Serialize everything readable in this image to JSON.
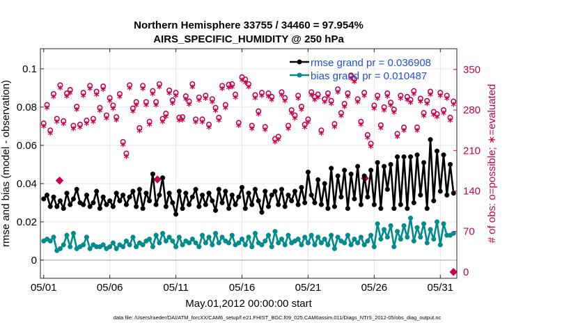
{
  "chart_data": {
    "type": "line",
    "title": "Northern Hemisphere 33755 / 34460 = 97.954%",
    "subtitle": "AIRS_SPECIFIC_HUMIDITY @ 250 hPa",
    "xlabel": "May.01,2012 00:00:00 start",
    "ylabel": "rmse and bias (model - observation)",
    "y2label": "# of obs: o=possible; ∗=evaluated",
    "footer": "data file: /Users/raeder/DAI/ATM_forcXX/CAM6_setup/f.e21.FHIST_BGC.f09_025.CAM6assim.011/Diags_NTrS_2012-05/obs_diag_output.nc",
    "x_tick_labels": [
      "05/01",
      "05/06",
      "05/11",
      "05/16",
      "05/21",
      "05/26",
      "05/31"
    ],
    "x_tick_values": [
      0,
      5,
      10,
      15,
      20,
      25,
      30
    ],
    "xlim": [
      -0.25,
      31.25
    ],
    "ylim": [
      -0.0095,
      0.1105
    ],
    "y_ticks": [
      0,
      0.02,
      0.04,
      0.06,
      0.08,
      0.1
    ],
    "y_tick_labels": [
      "0",
      "0.02",
      "0.04",
      "0.06",
      "0.08",
      "0.1"
    ],
    "y2lim": [
      -11,
      386
    ],
    "y2_ticks": [
      0,
      70,
      140,
      210,
      280,
      350
    ],
    "y2_tick_labels": [
      "0",
      "70",
      "140",
      "210",
      "280",
      "350"
    ],
    "x": [
      0.0,
      0.25,
      0.5,
      0.75,
      1.0,
      1.25,
      1.5,
      1.75,
      2.0,
      2.25,
      2.5,
      2.75,
      3.0,
      3.25,
      3.5,
      3.75,
      4.0,
      4.25,
      4.5,
      4.75,
      5.0,
      5.25,
      5.5,
      5.75,
      6.0,
      6.25,
      6.5,
      6.75,
      7.0,
      7.25,
      7.5,
      7.75,
      8.0,
      8.25,
      8.5,
      8.75,
      9.0,
      9.25,
      9.5,
      9.75,
      10.0,
      10.25,
      10.5,
      10.75,
      11.0,
      11.25,
      11.5,
      11.75,
      12.0,
      12.25,
      12.5,
      12.75,
      13.0,
      13.25,
      13.5,
      13.75,
      14.0,
      14.25,
      14.5,
      14.75,
      15.0,
      15.25,
      15.5,
      15.75,
      16.0,
      16.25,
      16.5,
      16.75,
      17.0,
      17.25,
      17.5,
      17.75,
      18.0,
      18.25,
      18.5,
      18.75,
      19.0,
      19.25,
      19.5,
      19.75,
      20.0,
      20.25,
      20.5,
      20.75,
      21.0,
      21.25,
      21.5,
      21.75,
      22.0,
      22.25,
      22.5,
      22.75,
      23.0,
      23.25,
      23.5,
      23.75,
      24.0,
      24.25,
      24.5,
      24.75,
      25.0,
      25.25,
      25.5,
      25.75,
      26.0,
      26.25,
      26.5,
      26.75,
      27.0,
      27.25,
      27.5,
      27.75,
      28.0,
      28.25,
      28.5,
      28.75,
      29.0,
      29.25,
      29.5,
      29.75,
      30.0,
      30.25,
      30.5,
      30.75,
      31.0
    ],
    "series": [
      {
        "name": "rmse grand pr = 0.036908",
        "axis": "left",
        "color": "#000000",
        "values": [
          0.032,
          0.034,
          0.028,
          0.033,
          0.028,
          0.031,
          0.027,
          0.035,
          0.029,
          0.032,
          0.037,
          0.03,
          0.029,
          0.034,
          0.028,
          0.03,
          0.036,
          0.027,
          0.033,
          0.029,
          0.031,
          0.028,
          0.035,
          0.031,
          0.034,
          0.029,
          0.033,
          0.036,
          0.028,
          0.037,
          0.027,
          0.035,
          0.031,
          0.045,
          0.029,
          0.034,
          0.043,
          0.028,
          0.035,
          0.03,
          0.024,
          0.036,
          0.027,
          0.035,
          0.029,
          0.033,
          0.037,
          0.028,
          0.034,
          0.029,
          0.035,
          0.031,
          0.026,
          0.037,
          0.03,
          0.036,
          0.027,
          0.034,
          0.029,
          0.033,
          0.038,
          0.027,
          0.035,
          0.029,
          0.037,
          0.031,
          0.025,
          0.036,
          0.028,
          0.034,
          0.036,
          0.029,
          0.037,
          0.028,
          0.034,
          0.031,
          0.036,
          0.029,
          0.038,
          0.03,
          0.046,
          0.034,
          0.03,
          0.042,
          0.029,
          0.04,
          0.027,
          0.048,
          0.028,
          0.044,
          0.033,
          0.047,
          0.027,
          0.045,
          0.032,
          0.049,
          0.029,
          0.044,
          0.033,
          0.047,
          0.029,
          0.051,
          0.027,
          0.049,
          0.037,
          0.05,
          0.027,
          0.054,
          0.029,
          0.054,
          0.027,
          0.054,
          0.03,
          0.055,
          0.034,
          0.051,
          0.027,
          0.063,
          0.031,
          0.057,
          0.036,
          0.055,
          0.034,
          0.05,
          0.035
        ]
      },
      {
        "name": "bias grand pr = 0.010487",
        "axis": "left",
        "color": "#008c8c",
        "values": [
          0.01,
          0.011,
          0.01,
          0.012,
          0.005,
          0.006,
          0.008,
          0.013,
          0.007,
          0.014,
          0.006,
          0.007,
          0.008,
          0.012,
          0.006,
          0.008,
          0.007,
          0.007,
          0.008,
          0.006,
          0.007,
          0.009,
          0.006,
          0.008,
          0.007,
          0.01,
          0.008,
          0.012,
          0.007,
          0.009,
          0.008,
          0.01,
          0.011,
          0.007,
          0.013,
          0.009,
          0.014,
          0.01,
          0.012,
          0.01,
          0.007,
          0.012,
          0.008,
          0.01,
          0.009,
          0.011,
          0.009,
          0.007,
          0.013,
          0.009,
          0.012,
          0.008,
          0.014,
          0.009,
          0.012,
          0.01,
          0.009,
          0.013,
          0.008,
          0.009,
          0.011,
          0.008,
          0.012,
          0.007,
          0.014,
          0.009,
          0.008,
          0.01,
          0.013,
          0.007,
          0.015,
          0.009,
          0.011,
          0.008,
          0.013,
          0.009,
          0.01,
          0.011,
          0.008,
          0.012,
          0.009,
          0.013,
          0.008,
          0.012,
          0.009,
          0.011,
          0.008,
          0.013,
          0.006,
          0.012,
          0.01,
          0.009,
          0.013,
          0.008,
          0.011,
          0.009,
          0.012,
          0.008,
          0.01,
          0.013,
          0.007,
          0.019,
          0.011,
          0.016,
          0.012,
          0.018,
          0.007,
          0.015,
          0.011,
          0.018,
          0.012,
          0.022,
          0.01,
          0.017,
          0.012,
          0.019,
          0.009,
          0.016,
          0.011,
          0.02,
          0.008,
          0.019,
          0.013,
          0.013,
          0.014
        ]
      },
      {
        "name": "obs possible",
        "axis": "right",
        "color": "#c8004c",
        "marker": "o",
        "values": [
          257,
          289,
          245,
          308,
          265,
          323,
          261,
          309,
          315,
          253,
          286,
          255,
          310,
          262,
          322,
          265,
          312,
          284,
          321,
          271,
          301,
          288,
          268,
          308,
          225,
          205,
          323,
          283,
          294,
          249,
          322,
          294,
          260,
          313,
          294,
          325,
          265,
          274,
          314,
          297,
          310,
          267,
          268,
          304,
          295,
          325,
          264,
          302,
          264,
          305,
          255,
          299,
          284,
          267,
          322,
          289,
          324,
          325,
          307,
          258,
          337,
          333,
          325,
          253,
          306,
          278,
          310,
          251,
          309,
          303,
          230,
          234,
          311,
          301,
          253,
          280,
          271,
          305,
          286,
          255,
          264,
          311,
          303,
          307,
          245,
          299,
          309,
          296,
          256,
          316,
          275,
          291,
          309,
          340,
          334,
          299,
          260,
          310,
          237,
          222,
          288,
          305,
          254,
          285,
          309,
          293,
          281,
          239,
          305,
          250,
          303,
          298,
          313,
          250,
          300,
          275,
          296,
          312,
          277,
          273,
          310,
          280,
          305,
          267,
          295
        ]
      },
      {
        "name": "obs evaluated",
        "axis": "right",
        "color": "#c8004c",
        "marker": "*",
        "values": [
          250,
          282,
          238,
          301,
          258,
          316,
          254,
          302,
          308,
          246,
          279,
          248,
          303,
          255,
          315,
          258,
          305,
          277,
          314,
          264,
          294,
          281,
          261,
          301,
          218,
          198,
          316,
          276,
          287,
          242,
          315,
          287,
          253,
          306,
          287,
          318,
          258,
          267,
          307,
          290,
          303,
          260,
          261,
          297,
          288,
          318,
          257,
          295,
          257,
          298,
          248,
          292,
          277,
          260,
          315,
          282,
          317,
          318,
          300,
          251,
          330,
          326,
          318,
          246,
          299,
          271,
          303,
          244,
          302,
          296,
          223,
          227,
          304,
          294,
          246,
          273,
          264,
          298,
          279,
          248,
          257,
          304,
          296,
          300,
          238,
          292,
          302,
          289,
          249,
          309,
          268,
          284,
          302,
          333,
          327,
          292,
          253,
          303,
          230,
          215,
          281,
          298,
          247,
          278,
          302,
          286,
          274,
          232,
          298,
          243,
          296,
          291,
          306,
          243,
          293,
          268,
          289,
          305,
          270,
          266,
          303,
          273,
          298,
          260,
          288
        ]
      }
    ],
    "right_axis_diamonds": [
      {
        "x": 1.2,
        "value": 158
      },
      {
        "x": 8.6,
        "value": 160
      },
      {
        "x": 24.3,
        "value": 162
      },
      {
        "x": 31.0,
        "value": 0
      }
    ],
    "legend_location": "top-right",
    "grid": true
  }
}
